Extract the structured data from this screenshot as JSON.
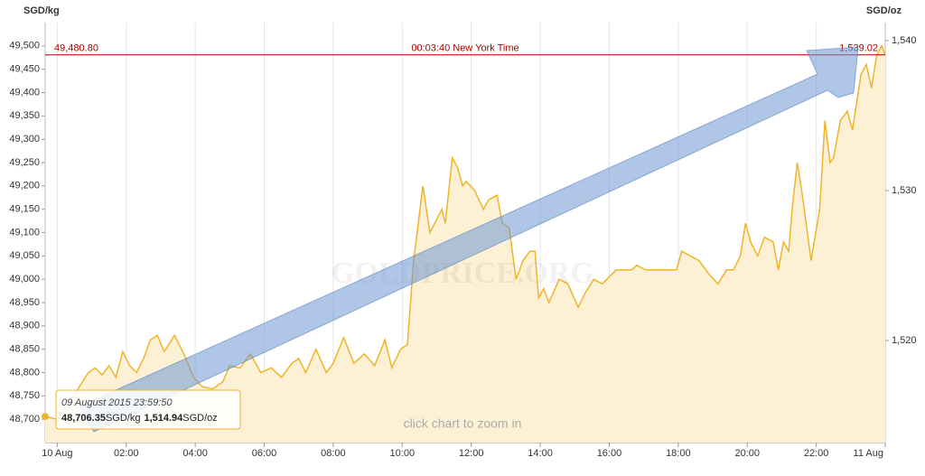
{
  "chart_data": {
    "type": "area",
    "y_axis_title": "SGD/kg",
    "y2_axis_title": "SGD/oz",
    "watermark": "GOLDPRICE.ORG",
    "zoom_hint": "click chart to zoom in",
    "color": "#f0b429",
    "fill_color": "#fcf1d4",
    "grid": "x",
    "xlim": [
      -0.35,
      24
    ],
    "xticks": [
      {
        "value": 0,
        "label": "10 Aug"
      },
      {
        "value": 2,
        "label": "02:00"
      },
      {
        "value": 4,
        "label": "04:00"
      },
      {
        "value": 6,
        "label": "06:00"
      },
      {
        "value": 8,
        "label": "08:00"
      },
      {
        "value": 10,
        "label": "10:00"
      },
      {
        "value": 12,
        "label": "12:00"
      },
      {
        "value": 14,
        "label": "14:00"
      },
      {
        "value": 16,
        "label": "16:00"
      },
      {
        "value": 18,
        "label": "18:00"
      },
      {
        "value": 20,
        "label": "20:00"
      },
      {
        "value": 22,
        "label": "22:00"
      },
      {
        "value": 24,
        "label": "11 Aug"
      }
    ],
    "ylim": [
      48650,
      49550
    ],
    "yticks": [
      {
        "value": 48700,
        "label": "48,700"
      },
      {
        "value": 48750,
        "label": "48,750"
      },
      {
        "value": 48800,
        "label": "48,800"
      },
      {
        "value": 48850,
        "label": "48,850"
      },
      {
        "value": 48900,
        "label": "48,900"
      },
      {
        "value": 48950,
        "label": "48,950"
      },
      {
        "value": 49000,
        "label": "49,000"
      },
      {
        "value": 49050,
        "label": "49,050"
      },
      {
        "value": 49100,
        "label": "49,100"
      },
      {
        "value": 49150,
        "label": "49,150"
      },
      {
        "value": 49200,
        "label": "49,200"
      },
      {
        "value": 49250,
        "label": "49,250"
      },
      {
        "value": 49300,
        "label": "49,300"
      },
      {
        "value": 49350,
        "label": "49,350"
      },
      {
        "value": 49400,
        "label": "49,400"
      },
      {
        "value": 49450,
        "label": "49,450"
      },
      {
        "value": 49500,
        "label": "49,500"
      }
    ],
    "y2lim": [
      1513.2,
      1541.2
    ],
    "y2ticks": [
      {
        "value": 1520,
        "label": "1,520"
      },
      {
        "value": 1530,
        "label": "1,530"
      },
      {
        "value": 1540,
        "label": "1,540"
      }
    ],
    "reference_line": {
      "value": 49480.8,
      "label": "49,480.80",
      "time_label": "00:03:40 New York Time",
      "y2_label": "1,539.02",
      "color": "#b00000"
    },
    "tooltip": {
      "date": "09 August 2015 23:59:50",
      "value_kg": "48,706.35",
      "unit_kg": "SGD/kg",
      "value_oz": "1,514.94",
      "unit_oz": "SGD/oz"
    },
    "x": [
      -0.35,
      0,
      0.3,
      0.6,
      0.9,
      1.1,
      1.3,
      1.5,
      1.7,
      1.9,
      2.1,
      2.3,
      2.5,
      2.7,
      2.9,
      3.1,
      3.4,
      3.7,
      3.95,
      4.2,
      4.5,
      4.8,
      5.0,
      5.3,
      5.6,
      5.9,
      6.2,
      6.5,
      6.8,
      7.0,
      7.2,
      7.5,
      7.8,
      8.0,
      8.3,
      8.6,
      8.9,
      9.2,
      9.5,
      9.7,
      9.95,
      10.15,
      10.33,
      10.6,
      10.8,
      11.15,
      11.25,
      11.45,
      11.6,
      11.75,
      11.85,
      12.1,
      12.35,
      12.5,
      12.75,
      12.9,
      13.1,
      13.3,
      13.5,
      13.7,
      13.85,
      13.95,
      14.1,
      14.25,
      14.55,
      14.8,
      15.1,
      15.3,
      15.55,
      15.8,
      16.2,
      16.65,
      16.8,
      17.05,
      17.95,
      18.1,
      18.35,
      18.6,
      18.9,
      19.15,
      19.4,
      19.6,
      19.8,
      19.95,
      20.1,
      20.3,
      20.5,
      20.75,
      20.9,
      21.05,
      21.2,
      21.3,
      21.45,
      21.6,
      21.85,
      22.1,
      22.25,
      22.4,
      22.5,
      22.7,
      22.9,
      23.05,
      23.3,
      23.45,
      23.6,
      23.75,
      23.9,
      24.0
    ],
    "values": [
      48706,
      48700,
      48730,
      48765,
      48800,
      48810,
      48795,
      48815,
      48790,
      48845,
      48815,
      48800,
      48830,
      48870,
      48880,
      48845,
      48880,
      48835,
      48790,
      48770,
      48765,
      48780,
      48815,
      48810,
      48840,
      48800,
      48810,
      48790,
      48820,
      48830,
      48800,
      48850,
      48800,
      48820,
      48875,
      48820,
      48840,
      48815,
      48870,
      48810,
      48850,
      48860,
      49040,
      49200,
      49100,
      49150,
      49120,
      49260,
      49240,
      49200,
      49210,
      49190,
      49150,
      49170,
      49180,
      49120,
      49110,
      49000,
      49040,
      49060,
      49060,
      48960,
      48980,
      48950,
      49000,
      48990,
      48940,
      48970,
      49000,
      48990,
      49020,
      49020,
      49030,
      49020,
      49020,
      49060,
      49050,
      49040,
      49010,
      48990,
      49020,
      49020,
      49050,
      49120,
      49080,
      49050,
      49090,
      49080,
      49020,
      49080,
      49060,
      49150,
      49250,
      49180,
      49040,
      49150,
      49340,
      49250,
      49260,
      49340,
      49360,
      49320,
      49440,
      49460,
      49410,
      49480,
      49500,
      49480
    ]
  }
}
